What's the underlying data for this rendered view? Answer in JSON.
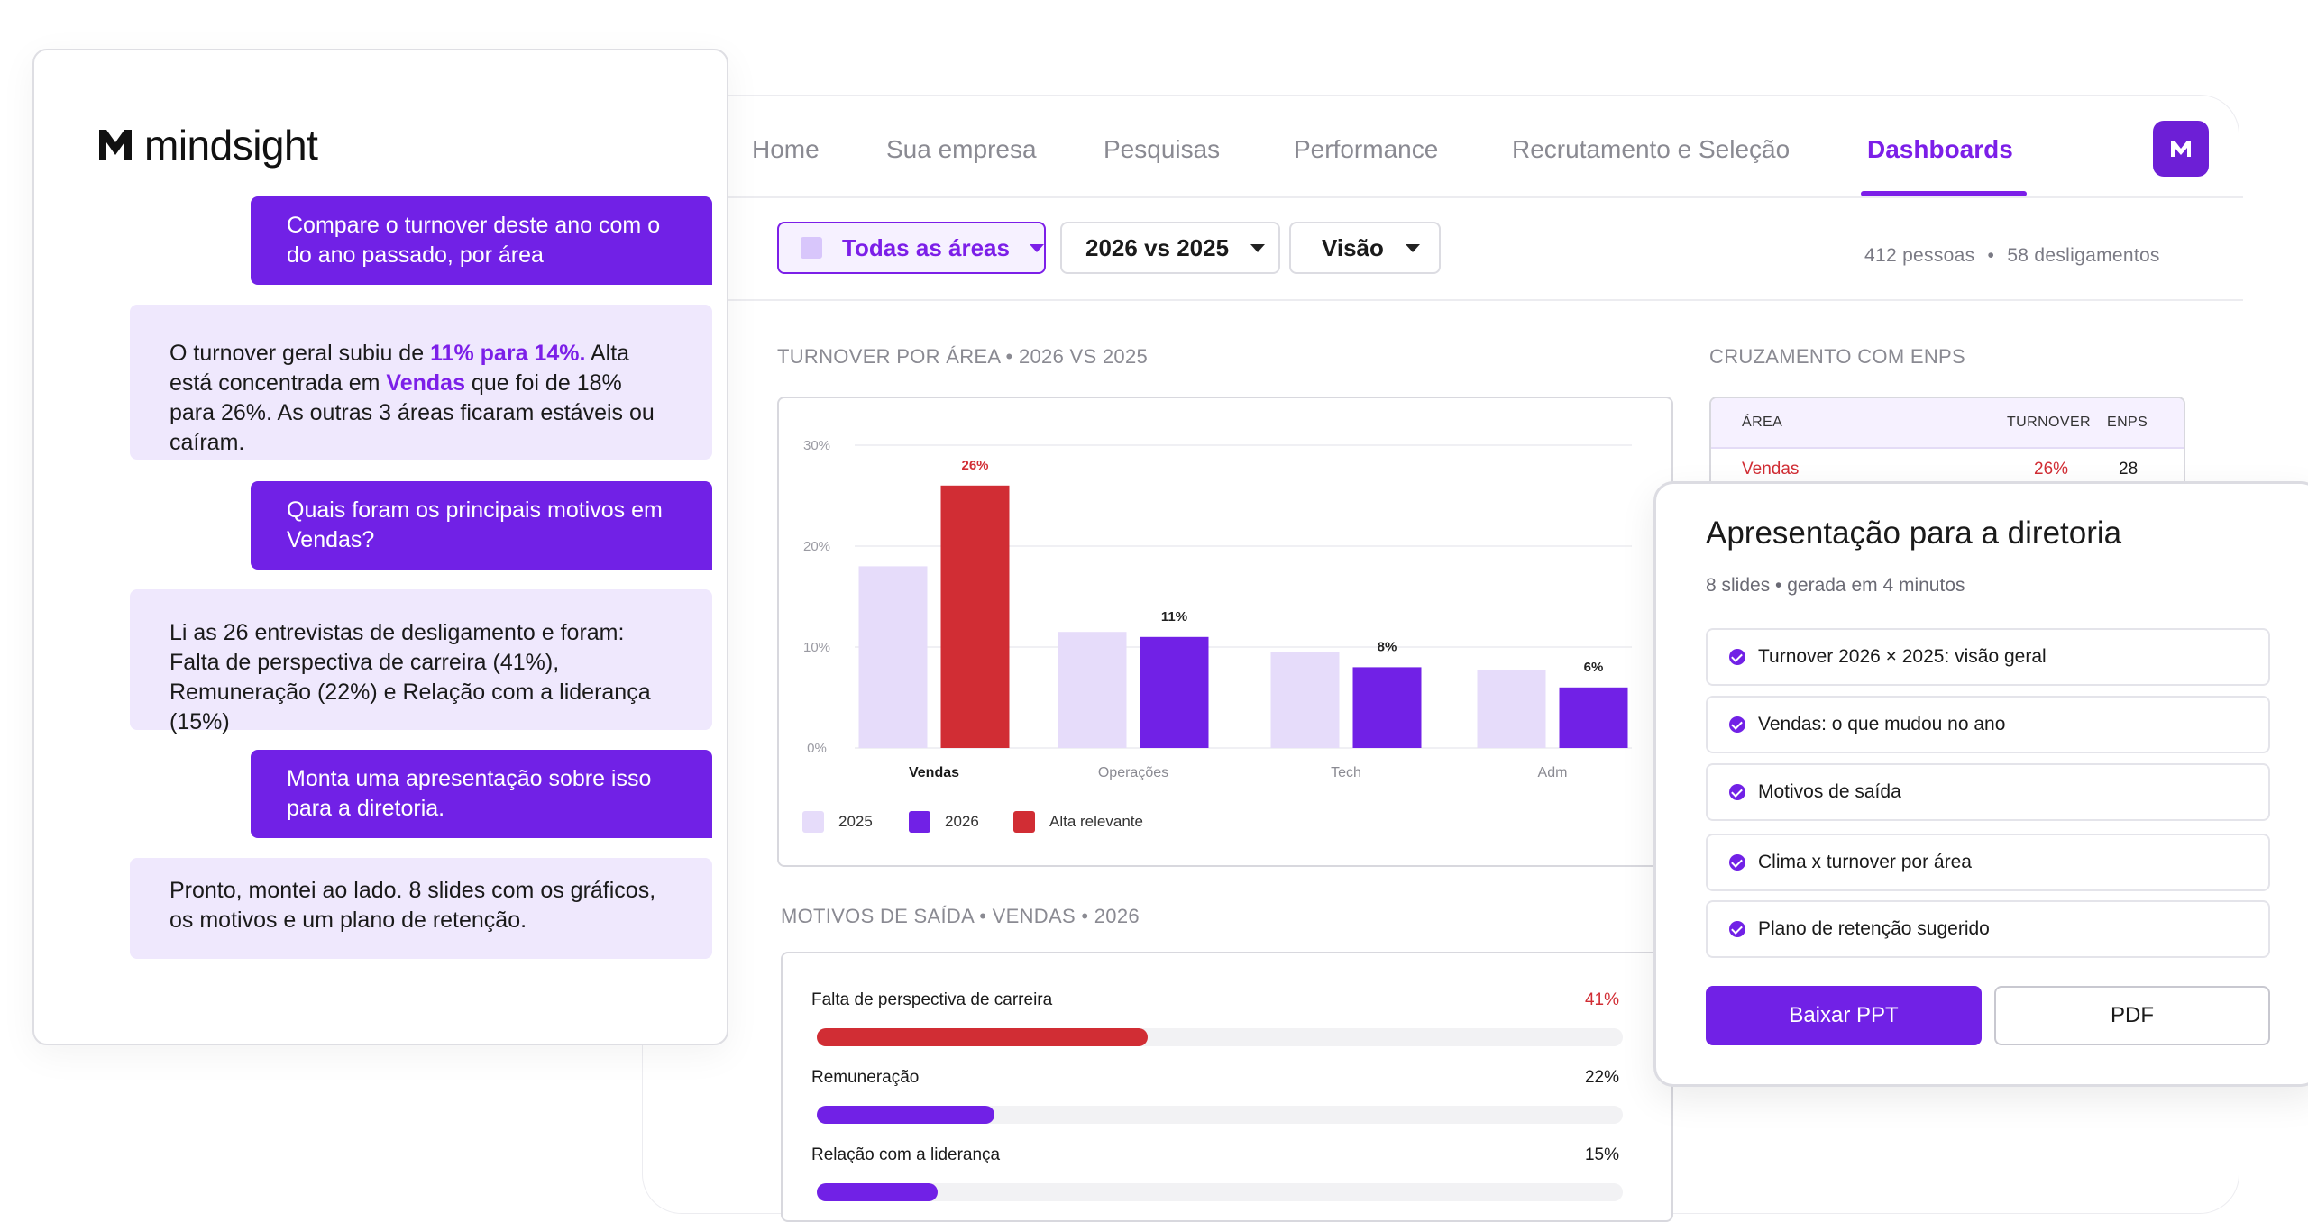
{
  "colors": {
    "accent": "#7c1fe8",
    "accent_dark": "#7121e6",
    "highlight_red": "#d12d34",
    "light_series": "#e6dcfa",
    "ai_bubble": "#efe8fd"
  },
  "brand": {
    "name": "mindsight",
    "logo_icon": "mindsight-logo-icon"
  },
  "nav": {
    "items": [
      "Home",
      "Sua empresa",
      "Pesquisas",
      "Performance",
      "Recrutamento e Seleção",
      "Dashboards"
    ],
    "active": "Dashboards"
  },
  "filters": {
    "area": "Todas as áreas",
    "comparison": "2026 vs 2025",
    "view": "Visão"
  },
  "summary": {
    "people": "412 pessoas",
    "separator": "•",
    "separations": "58 desligamentos"
  },
  "turnover_section": {
    "title": "TURNOVER POR ÁREA • 2026 VS 2025"
  },
  "chart_data": {
    "type": "bar",
    "title": "TURNOVER POR ÁREA • 2026 VS 2025",
    "categories": [
      "Vendas",
      "Operações",
      "Tech",
      "Adm"
    ],
    "series": [
      {
        "name": "2025",
        "values": [
          18,
          11.5,
          9.5,
          7.7
        ]
      },
      {
        "name": "2026",
        "values": [
          26,
          11,
          8,
          6
        ]
      }
    ],
    "data_labels": [
      "26%",
      "11%",
      "8%",
      "6%"
    ],
    "highlight": {
      "category": "Vendas",
      "series": "2026",
      "legend": "Alta relevante"
    },
    "yticks": [
      "0%",
      "10%",
      "20%",
      "30%"
    ],
    "ylim": [
      0,
      30
    ],
    "grid": true,
    "legend": [
      "2025",
      "2026",
      "Alta relevante"
    ],
    "legend_position": "bottom-left"
  },
  "exits_section": {
    "title": "MOTIVOS DE SAÍDA • VENDAS • 2026",
    "items": [
      {
        "label": "Falta de perspectiva de carreira",
        "pct": "41%",
        "value": 0.41,
        "highlight": true
      },
      {
        "label": "Remuneração",
        "pct": "22%",
        "value": 0.22,
        "highlight": false
      },
      {
        "label": "Relação com a liderança",
        "pct": "15%",
        "value": 0.15,
        "highlight": false
      }
    ]
  },
  "enps_section": {
    "title": "CRUZAMENTO COM ENPS",
    "headers": [
      "ÁREA",
      "TURNOVER",
      "ENPS"
    ],
    "rows": [
      {
        "area": "Vendas",
        "turnover": "26%",
        "enps": "28"
      }
    ]
  },
  "chat": {
    "messages": [
      {
        "role": "user",
        "text": "Compare o turnover deste ano com o do ano passado, por área"
      },
      {
        "role": "ai",
        "parts": [
          "O turnover geral subiu de ",
          "11% para 14%.",
          " Alta está concentrada em ",
          "Vendas",
          " que foi de 18% para 26%. As outras 3 áreas ficaram estáveis ou caíram."
        ]
      },
      {
        "role": "user",
        "text": "Quais foram os principais motivos em Vendas?"
      },
      {
        "role": "ai",
        "text": "Li as 26 entrevistas de desligamento e foram: Falta de perspectiva de carreira (41%), Remuneração (22%) e Relação com a liderança (15%)"
      },
      {
        "role": "user",
        "text": "Monta uma apresentação sobre isso para a diretoria."
      },
      {
        "role": "ai",
        "text": "Pronto, montei ao lado. 8 slides com os gráficos, os motivos e um plano de retenção."
      }
    ]
  },
  "presentation": {
    "title": "Apresentação para a diretoria",
    "meta": "8 slides • gerada em 4 minutos",
    "slides": [
      "Turnover 2026 × 2025: visão geral",
      "Vendas: o que mudou no ano",
      "Motivos de saída",
      "Clima x turnover por área",
      "Plano de retenção sugerido"
    ],
    "primary_button": "Baixar PPT",
    "secondary_button": "PDF"
  }
}
